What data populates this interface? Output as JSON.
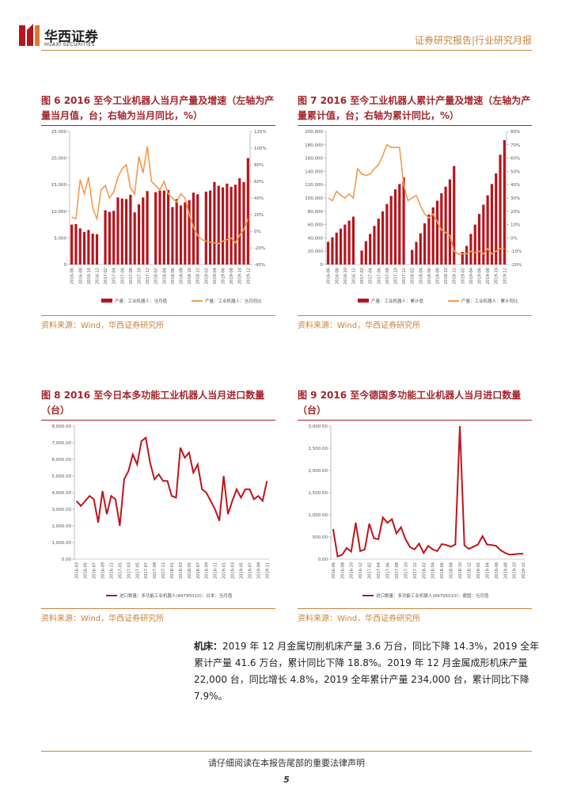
{
  "header": {
    "company": "华西证券",
    "company_en": "HUAXI SECURITIES",
    "report_type": "证券研究报告|行业研究月报"
  },
  "chart_data": [
    {
      "type": "combo",
      "title": "图 6  2016 至今工业机器人当月产量及增速（左轴为产量当月值，台；右轴为当月同比，%）",
      "source": "资料来源：Wind，华西证券研究所",
      "categories": [
        "2016-06",
        null,
        "2016-08",
        null,
        "2016-10",
        null,
        "2016-12",
        null,
        "2017-02",
        null,
        "2017-04",
        null,
        "2017-06",
        null,
        "2017-08",
        null,
        "2017-10",
        null,
        "2017-12",
        null,
        "2018-02",
        null,
        "2018-04",
        null,
        "2018-06",
        null,
        "2018-08",
        null,
        "2018-10",
        null,
        "2018-12",
        null,
        "2019-02",
        null,
        "2019-04",
        null,
        "2019-06",
        null,
        "2019-08",
        null,
        "2019-10",
        null,
        "2019-12"
      ],
      "series": [
        {
          "name": "产量：工业机器人：当月值",
          "type": "bar",
          "color": "#b8141c",
          "values": [
            7500,
            7600,
            6800,
            6100,
            6500,
            5800,
            5700,
            null,
            10200,
            9900,
            10100,
            12600,
            12400,
            12300,
            13100,
            9800,
            11300,
            12600,
            13800,
            null,
            13600,
            13900,
            13900,
            14000,
            10800,
            12300,
            11100,
            11700,
            12100,
            13500,
            13200,
            null,
            13700,
            13900,
            15500,
            14800,
            14500,
            15200,
            14600,
            15000,
            16200,
            15500,
            20000
          ]
        },
        {
          "name": "产量：工业机器人：当月同比",
          "type": "line",
          "axis": "y2",
          "color": "#f29b4c",
          "values": [
            17,
            15,
            62,
            45,
            65,
            28,
            15,
            50,
            55,
            40,
            47,
            65,
            75,
            80,
            52,
            45,
            90,
            70,
            102,
            60,
            55,
            50,
            60,
            45,
            40,
            35,
            45,
            40,
            20,
            5,
            -5,
            -10,
            -12,
            -13,
            -14,
            -15,
            -12,
            -10,
            -8,
            -14,
            -5,
            2,
            15
          ]
        }
      ],
      "ylim": [
        0,
        25000
      ],
      "yticks": [
        0,
        {
          "value": 5000,
          "label": "5,000"
        },
        {
          "value": 10000,
          "label": "10,000"
        },
        {
          "value": 15000,
          "label": "15,000"
        },
        {
          "value": 20000,
          "label": "20,000"
        },
        {
          "value": 25000,
          "label": "25,000"
        }
      ],
      "y2lim": [
        -40,
        120
      ],
      "y2ticks": [
        {
          "value": -40,
          "label": "-40%"
        },
        {
          "value": -20,
          "label": "-20%"
        },
        {
          "value": 0,
          "label": "0%"
        },
        {
          "value": 20,
          "label": "20%"
        },
        {
          "value": 40,
          "label": "40%"
        },
        {
          "value": 60,
          "label": "60%"
        },
        {
          "value": 80,
          "label": "80%"
        },
        {
          "value": 100,
          "label": "100%"
        },
        {
          "value": 120,
          "label": "120%"
        }
      ]
    },
    {
      "type": "combo",
      "title": "图 7  2016 至今工业机器人累计产量及增速（左轴为产量累计值，台；右轴为累计同比，%）",
      "source": "资料来源：Wind，华西证券研究所",
      "categories": [
        "2016-06",
        null,
        "2016-08",
        null,
        "2016-10",
        null,
        "2016-12",
        null,
        "2017-02",
        null,
        "2017-04",
        null,
        "2017-06",
        null,
        "2017-08",
        null,
        "2017-10",
        null,
        "2017-12",
        null,
        "2018-02",
        null,
        "2018-04",
        null,
        "2018-06",
        null,
        "2018-08",
        null,
        "2018-10",
        null,
        "2018-12",
        null,
        "2019-02",
        null,
        "2019-04",
        null,
        "2019-06",
        null,
        "2019-08",
        null,
        "2019-10",
        null,
        "2019-12"
      ],
      "series": [
        {
          "name": "产量：工业机器人：累计值",
          "type": "bar",
          "color": "#b8141c",
          "values": [
            34000,
            41000,
            48000,
            54000,
            60000,
            66000,
            72000,
            null,
            21000,
            35000,
            46000,
            58000,
            69000,
            80000,
            91000,
            103000,
            113000,
            121000,
            131000,
            null,
            22000,
            34000,
            47000,
            62000,
            75000,
            86000,
            96000,
            107000,
            117000,
            128000,
            148000,
            null,
            19000,
            28000,
            46000,
            60000,
            76000,
            90000,
            104000,
            121000,
            137000,
            165000,
            187000
          ]
        },
        {
          "name": "产量：工业机器人：累计同比",
          "type": "line",
          "axis": "y2",
          "color": "#f29b4c",
          "values": [
            30,
            28,
            35,
            32,
            30,
            33,
            30,
            52,
            48,
            47,
            48,
            52,
            55,
            62,
            70,
            68,
            68,
            68,
            40,
            28,
            30,
            32,
            24,
            18,
            15,
            18,
            12,
            6,
            4,
            2,
            -10,
            -12,
            -12,
            -12,
            -10,
            -11,
            -10,
            -12,
            -8,
            -12,
            -10,
            -8,
            -8
          ]
        }
      ],
      "ylim": [
        0,
        200000
      ],
      "yticks": [
        0,
        {
          "value": 20000,
          "label": "20,000"
        },
        {
          "value": 40000,
          "label": "40,000"
        },
        {
          "value": 60000,
          "label": "60,000"
        },
        {
          "value": 80000,
          "label": "80,000"
        },
        {
          "value": 100000,
          "label": "100,000"
        },
        {
          "value": 120000,
          "label": "120,000"
        },
        {
          "value": 140000,
          "label": "140,000"
        },
        {
          "value": 160000,
          "label": "160,000"
        },
        {
          "value": 180000,
          "label": "180,000"
        },
        {
          "value": 200000,
          "label": "200,000"
        }
      ],
      "y2lim": [
        -20,
        80
      ],
      "y2ticks": [
        {
          "value": -20,
          "label": "-20%"
        },
        {
          "value": -10,
          "label": "-10%"
        },
        {
          "value": 0,
          "label": "0%"
        },
        {
          "value": 10,
          "label": "10%"
        },
        {
          "value": 20,
          "label": "20%"
        },
        {
          "value": 30,
          "label": "30%"
        },
        {
          "value": 40,
          "label": "40%"
        },
        {
          "value": 50,
          "label": "50%"
        },
        {
          "value": 60,
          "label": "60%"
        },
        {
          "value": 70,
          "label": "70%"
        },
        {
          "value": 80,
          "label": "80%"
        }
      ]
    },
    {
      "type": "line",
      "title": "图 8  2016 至今日本多功能工业机器人当月进口数量（台）",
      "source": "资料来源：Wind，华西证券研究所",
      "categories": [
        "2016-03",
        null,
        "2016-05",
        null,
        "2016-07",
        null,
        "2016-09",
        null,
        "2016-11",
        null,
        "2017-01",
        null,
        "2017-03",
        null,
        "2017-05",
        null,
        "2017-07",
        null,
        "2017-09",
        null,
        "2017-11",
        null,
        "2018-01",
        null,
        "2018-03",
        null,
        "2018-05",
        null,
        "2018-07",
        null,
        "2018-09",
        null,
        "2018-11",
        null,
        "2019-01",
        null,
        "2019-03",
        null,
        "2019-05",
        null,
        "2019-07",
        null,
        "2019-09",
        null,
        "2019-11"
      ],
      "series": [
        {
          "name": "进口数量：多功能工业机器人(84795010)：日本：当月值",
          "color": "#c0141c",
          "values": [
            3500,
            3200,
            3500,
            3800,
            3600,
            2200,
            4100,
            2700,
            3800,
            3600,
            2000,
            4800,
            5300,
            6300,
            5700,
            7100,
            7300,
            5800,
            4800,
            5100,
            4700,
            4700,
            3800,
            3700,
            6700,
            6100,
            6400,
            5200,
            5700,
            4200,
            4000,
            3500,
            3000,
            2300,
            5000,
            2700,
            3500,
            4200,
            3700,
            4200,
            4200,
            3600,
            3800,
            3500,
            4700
          ]
        }
      ],
      "ylim": [
        0,
        8000
      ],
      "yticks": [
        {
          "value": 0,
          "label": "0.00"
        },
        {
          "value": 1000,
          "label": "1,000.00"
        },
        {
          "value": 2000,
          "label": "2,000.00"
        },
        {
          "value": 3000,
          "label": "3,000.00"
        },
        {
          "value": 4000,
          "label": "4,000.00"
        },
        {
          "value": 5000,
          "label": "5,000.00"
        },
        {
          "value": 6000,
          "label": "6,000.00"
        },
        {
          "value": 7000,
          "label": "7,000.00"
        },
        {
          "value": 8000,
          "label": "8,000.00"
        }
      ]
    },
    {
      "type": "line",
      "title": "图 9  2016 至今德国多功能工业机器人当月进口数量（台）",
      "source": "资料来源：Wind，华西证券研究所",
      "categories": [
        "2016-06",
        null,
        "2016-08",
        null,
        "2016-10",
        null,
        "2016-12",
        null,
        "2017-02",
        null,
        "2017-04",
        null,
        "2017-06",
        null,
        "2017-08",
        null,
        "2017-10",
        null,
        "2017-12",
        null,
        "2018-02",
        null,
        "2018-04",
        null,
        "2018-06",
        null,
        "2018-08",
        null,
        "2018-10",
        null,
        "2018-12",
        null,
        "2019-02",
        null,
        "2019-04",
        null,
        "2019-06",
        null,
        "2019-08",
        null,
        "2019-10",
        null,
        "2019-12"
      ],
      "series": [
        {
          "name": "进口数量：多功能工业机器人(84795010)：德国：当月值",
          "color": "#c0141c",
          "values": [
            680,
            60,
            100,
            250,
            170,
            820,
            180,
            220,
            800,
            470,
            450,
            940,
            820,
            900,
            580,
            720,
            450,
            270,
            220,
            350,
            140,
            300,
            220,
            180,
            340,
            320,
            280,
            330,
            3000,
            310,
            230,
            280,
            330,
            520,
            330,
            320,
            300,
            200,
            140,
            100,
            110,
            120,
            120
          ]
        }
      ],
      "ylim": [
        0,
        3000
      ],
      "yticks": [
        {
          "value": 0,
          "label": "0.00"
        },
        {
          "value": 500,
          "label": "500.00"
        },
        {
          "value": 1000,
          "label": "1,000.00"
        },
        {
          "value": 1500,
          "label": "1,500.00"
        },
        {
          "value": 2000,
          "label": "2,000.00"
        },
        {
          "value": 2500,
          "label": "2,500.00"
        },
        {
          "value": 3000,
          "label": "3,000.00"
        }
      ]
    }
  ],
  "body": {
    "lead": "机床：",
    "text": "2019 年 12 月金属切削机床产量 3.6 万台，同比下降 14.3%，2019 全年累计产量 41.6 万台，累计同比下降 18.8%。2019 年 12 月金属成形机床产量 22,000 台，同比增长 4.8%，2019 全年累计产量 234,000 台，累计同比下降 7.9%。"
  },
  "footer": {
    "notice": "请仔细阅读在本报告尾部的重要法律声明",
    "page": "5"
  }
}
